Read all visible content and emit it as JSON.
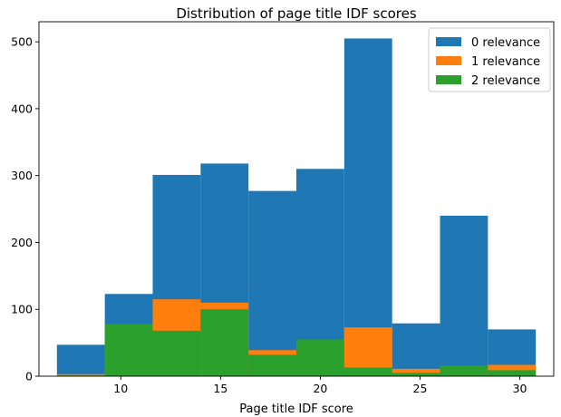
{
  "chart_data": {
    "type": "bar",
    "title": "Distribution of page title IDF scores",
    "xlabel": "Page title IDF score",
    "ylabel": "",
    "xlim": [
      5.9,
      31.7
    ],
    "ylim": [
      0,
      530
    ],
    "xticks": [
      10,
      15,
      20,
      25,
      30
    ],
    "yticks": [
      0,
      100,
      200,
      300,
      400,
      500
    ],
    "bin_edges": [
      6.8,
      9.2,
      11.6,
      14.0,
      16.4,
      18.8,
      21.2,
      23.6,
      26.0,
      28.4,
      30.8
    ],
    "series": [
      {
        "name": "0 relevance",
        "color": "#1f77b4",
        "values": [
          47,
          123,
          301,
          318,
          277,
          310,
          505,
          79,
          240,
          70
        ]
      },
      {
        "name": "1 relevance",
        "color": "#ff7f0e",
        "values": [
          3,
          10,
          115,
          110,
          39,
          19,
          73,
          11,
          4,
          17
        ]
      },
      {
        "name": "2 relevance",
        "color": "#2ca02c",
        "values": [
          1,
          78,
          68,
          100,
          32,
          55,
          13,
          5,
          16,
          9
        ]
      }
    ],
    "legend_position": "top-right"
  }
}
